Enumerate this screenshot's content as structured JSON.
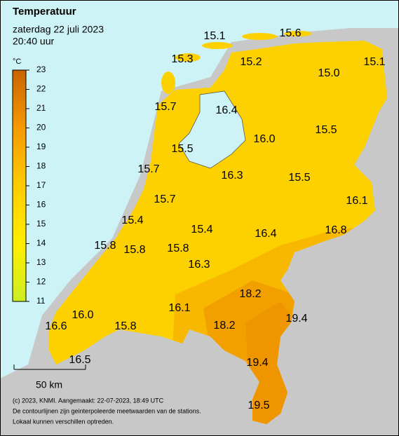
{
  "header": {
    "title": "Temperatuur",
    "date": "zaterdag 22 juli 2023",
    "time": "20:40 uur"
  },
  "legend": {
    "unit": "°C",
    "range": [
      11,
      23
    ],
    "ticks": [
      11,
      12,
      13,
      14,
      15,
      16,
      17,
      18,
      19,
      20,
      21,
      22,
      23
    ]
  },
  "stations": [
    15.1,
    15.6,
    15.3,
    15.2,
    15.0,
    15.1,
    15.7,
    16.4,
    16.0,
    15.5,
    15.5,
    15.7,
    16.3,
    15.5,
    16.1,
    15.7,
    15.4,
    15.4,
    16.4,
    16.8,
    15.8,
    15.8,
    15.8,
    16.3,
    18.2,
    16.0,
    16.1,
    19.4,
    16.6,
    15.8,
    18.2,
    16.5,
    19.4,
    19.5
  ],
  "scale_bar": "50 km",
  "footer": [
    "(c) 2023, KNMI. Aangemaakt: 22-07-2023, 18:49 UTC",
    "De contourlijnen zijn geinterpoleerde meetwaarden van de stations.",
    "Lokaal kunnen verschillen optreden."
  ]
}
